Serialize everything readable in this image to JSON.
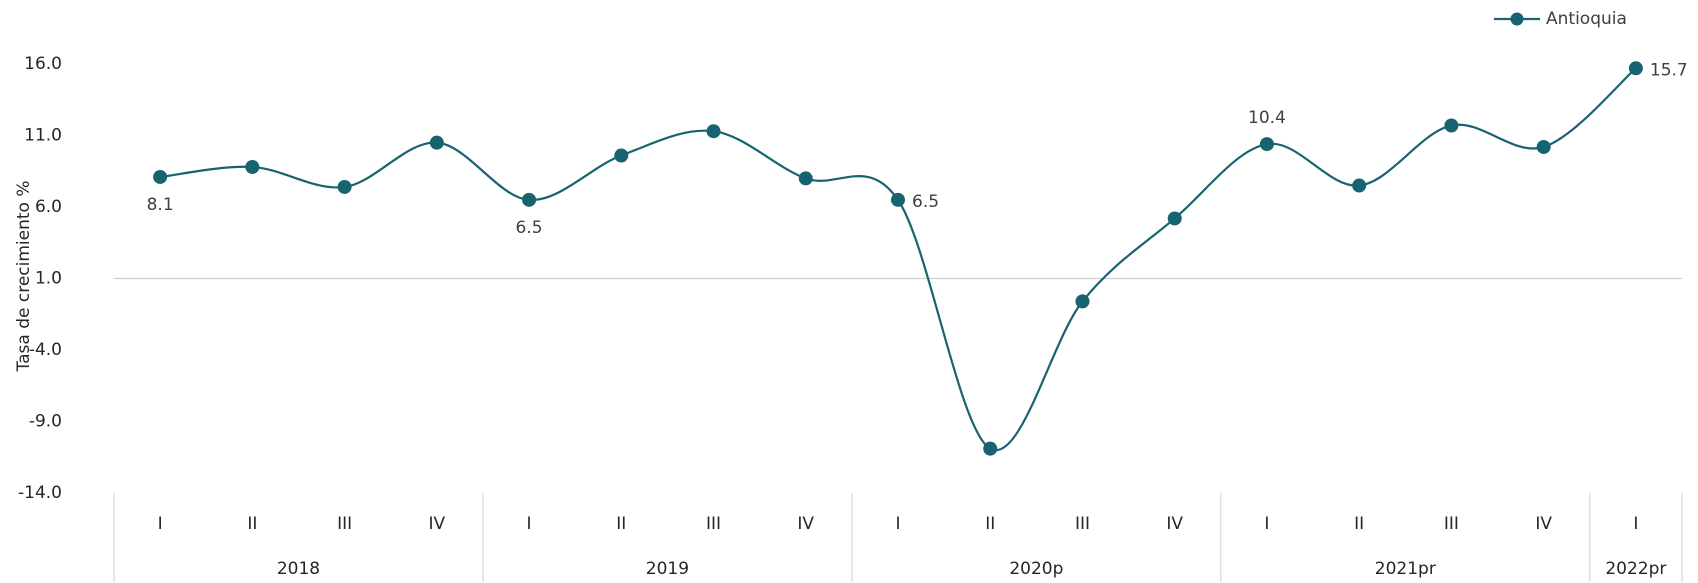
{
  "chart_data": {
    "type": "line",
    "y_label": "Tasa de crecimiento %",
    "groups": [
      {
        "name": "2018",
        "quarters": [
          "I",
          "II",
          "III",
          "IV"
        ]
      },
      {
        "name": "2019",
        "quarters": [
          "I",
          "II",
          "III",
          "IV"
        ]
      },
      {
        "name": "2020p",
        "quarters": [
          "I",
          "II",
          "III",
          "IV"
        ]
      },
      {
        "name": "2021pr",
        "quarters": [
          "I",
          "II",
          "III",
          "IV"
        ]
      },
      {
        "name": "2022pr",
        "quarters": [
          "I"
        ]
      }
    ],
    "series": [
      {
        "name": "Antioquia",
        "color": "#17636f",
        "values": [
          8.1,
          8.8,
          7.4,
          10.5,
          6.5,
          9.6,
          11.3,
          8.0,
          6.5,
          -10.9,
          -0.6,
          5.2,
          10.4,
          7.5,
          11.7,
          10.2,
          15.7
        ],
        "value_labels": [
          "8.1",
          null,
          null,
          null,
          "6.5",
          null,
          null,
          null,
          "6.5",
          null,
          null,
          null,
          "10.4",
          null,
          null,
          null,
          "15.7"
        ]
      }
    ],
    "ylim": [
      -14,
      16
    ],
    "yticks": [
      {
        "value": -14,
        "label": "-14.0"
      },
      {
        "value": -9,
        "label": "-9.0"
      },
      {
        "value": -4,
        "label": "-4.0"
      },
      {
        "value": 1,
        "label": "1.0"
      },
      {
        "value": 6,
        "label": "6.0"
      },
      {
        "value": 11,
        "label": "11.0"
      },
      {
        "value": 16,
        "label": "16.0"
      }
    ],
    "x_axis_at": 1,
    "smooth": true,
    "grid": false,
    "legend": "top-right"
  }
}
